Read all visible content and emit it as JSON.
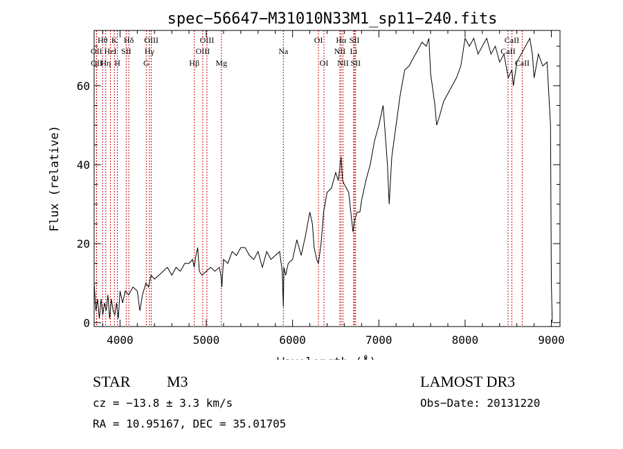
{
  "chart_data": {
    "type": "line",
    "title": "spec−56647−M31010N33M1_sp11−240.fits",
    "xlabel": "Wavelength (Å)",
    "ylabel": "Flux (relative)",
    "xlim": [
      3700,
      9100
    ],
    "ylim": [
      -1,
      74
    ],
    "xticks": [
      4000,
      5000,
      6000,
      7000,
      8000,
      9000
    ],
    "yticks": [
      0,
      20,
      40,
      60
    ],
    "series": [
      {
        "name": "spectrum",
        "x": [
          3700,
          3720,
          3740,
          3760,
          3780,
          3800,
          3820,
          3840,
          3860,
          3880,
          3900,
          3920,
          3940,
          3960,
          3980,
          4000,
          4030,
          4060,
          4100,
          4150,
          4200,
          4230,
          4260,
          4300,
          4330,
          4360,
          4400,
          4450,
          4500,
          4550,
          4600,
          4650,
          4700,
          4750,
          4800,
          4840,
          4860,
          4880,
          4900,
          4920,
          4950,
          5000,
          5050,
          5100,
          5150,
          5170,
          5180,
          5200,
          5250,
          5300,
          5350,
          5400,
          5450,
          5500,
          5550,
          5600,
          5650,
          5700,
          5750,
          5800,
          5850,
          5880,
          5893,
          5900,
          5920,
          5950,
          6000,
          6050,
          6100,
          6150,
          6200,
          6230,
          6250,
          6280,
          6300,
          6330,
          6360,
          6400,
          6450,
          6500,
          6530,
          6563,
          6580,
          6600,
          6650,
          6700,
          6720,
          6750,
          6780,
          6800,
          6850,
          6900,
          6950,
          7000,
          7050,
          7100,
          7120,
          7150,
          7200,
          7250,
          7300,
          7350,
          7400,
          7450,
          7500,
          7550,
          7580,
          7600,
          7620,
          7650,
          7670,
          7700,
          7750,
          7800,
          7850,
          7900,
          7950,
          8000,
          8050,
          8100,
          8150,
          8200,
          8250,
          8300,
          8350,
          8400,
          8450,
          8500,
          8542,
          8560,
          8600,
          8650,
          8700,
          8750,
          8780,
          8800,
          8850,
          8900,
          8950,
          8990,
          9000,
          9010
        ],
        "values": [
          10,
          3,
          6,
          1,
          6,
          2,
          5,
          3,
          7,
          1,
          6,
          3,
          2,
          5,
          1,
          8,
          5,
          8,
          7,
          9,
          8,
          3,
          7,
          10,
          9,
          12,
          11,
          12,
          13,
          14,
          12,
          14,
          13,
          15,
          15,
          16,
          14,
          17,
          19,
          13,
          12,
          13,
          14,
          13,
          14,
          12,
          9,
          16,
          15,
          18,
          17,
          19,
          19,
          17,
          16,
          18,
          14,
          18,
          16,
          17,
          18,
          13,
          4,
          14,
          12,
          15,
          16,
          21,
          17,
          22,
          28,
          25,
          19,
          16,
          15,
          20,
          28,
          33,
          34,
          38,
          36,
          42,
          36,
          35,
          33,
          23,
          26,
          28,
          28,
          31,
          36,
          40,
          46,
          50,
          55,
          40,
          30,
          42,
          50,
          58,
          64,
          65,
          67,
          69,
          71,
          70,
          72,
          63,
          60,
          55,
          50,
          52,
          56,
          58,
          60,
          62,
          65,
          72,
          70,
          72,
          68,
          70,
          72,
          68,
          70,
          66,
          68,
          62,
          64,
          60,
          66,
          68,
          70,
          72,
          68,
          62,
          68,
          65,
          66,
          50,
          10,
          0
        ]
      }
    ],
    "lines": [
      {
        "label": "Hθ",
        "wl": 3798,
        "row": 1
      },
      {
        "label": "OII",
        "wl": 3727,
        "row": 2
      },
      {
        "label": "OII",
        "wl": 3729,
        "row": 3
      },
      {
        "label": "Hη",
        "wl": 3835,
        "row": 3
      },
      {
        "label": "HeI",
        "wl": 3889,
        "row": 2
      },
      {
        "label": "K",
        "wl": 3934,
        "row": 1
      },
      {
        "label": "H",
        "wl": 3969,
        "row": 3
      },
      {
        "label": "SII",
        "wl": 4072,
        "row": 2
      },
      {
        "label": "Hδ",
        "wl": 4102,
        "row": 1
      },
      {
        "label": "OIII",
        "wl": 4363,
        "row": 1
      },
      {
        "label": "Hγ",
        "wl": 4341,
        "row": 2
      },
      {
        "label": "G",
        "wl": 4304,
        "row": 3
      },
      {
        "label": "Hβ",
        "wl": 4861,
        "row": 3
      },
      {
        "label": "OIII",
        "wl": 5007,
        "row": 1
      },
      {
        "label": "OIII",
        "wl": 4959,
        "row": 2
      },
      {
        "label": "Mg",
        "wl": 5175,
        "row": 3
      },
      {
        "label": "Na",
        "wl": 5893,
        "row": 2
      },
      {
        "label": "OI",
        "wl": 6300,
        "row": 1
      },
      {
        "label": "OI",
        "wl": 6364,
        "row": 3
      },
      {
        "label": "Hα",
        "wl": 6563,
        "row": 1
      },
      {
        "label": "NII",
        "wl": 6548,
        "row": 2
      },
      {
        "label": "NII",
        "wl": 6584,
        "row": 3
      },
      {
        "label": "SII",
        "wl": 6717,
        "row": 1
      },
      {
        "label": "Li",
        "wl": 6708,
        "row": 2
      },
      {
        "label": "SII",
        "wl": 6731,
        "row": 3
      },
      {
        "label": "CaII",
        "wl": 8542,
        "row": 1
      },
      {
        "label": "CaII",
        "wl": 8498,
        "row": 2
      },
      {
        "label": "CaII",
        "wl": 8662,
        "row": 3
      }
    ],
    "line_color": "#cc0000"
  },
  "info": {
    "object_class": "STAR",
    "subclass": "M3",
    "survey": "LAMOST DR3",
    "cz": "cz = −13.8 ± 3.3 km/s",
    "obs_date": "Obs−Date: 20131220",
    "coords": "RA =  10.95167, DEC =  35.01705"
  }
}
